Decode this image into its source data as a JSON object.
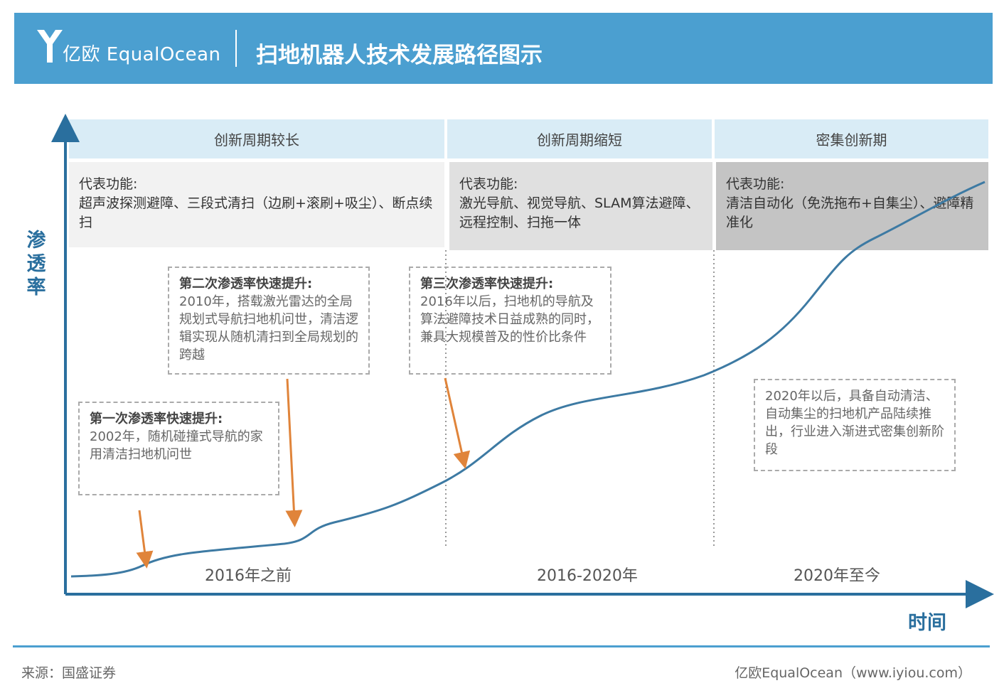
{
  "header": {
    "logo_text": "亿欧 EqualOcean",
    "title": "扫地机器人技术发展路径图示"
  },
  "axes": {
    "y_label": "渗透率",
    "x_label": "时间"
  },
  "stages": [
    {
      "head": "创新周期较长",
      "feature_title": "代表功能:",
      "features": "超声波探测避障、三段式清扫（边刷+滚刷+吸尘）、断点续扫",
      "period": "2016年之前"
    },
    {
      "head": "创新周期缩短",
      "feature_title": "代表功能:",
      "features": "激光导航、视觉导航、SLAM算法避障、远程控制、扫拖一体",
      "period": "2016-2020年"
    },
    {
      "head": "密集创新期",
      "feature_title": "代表功能:",
      "features": "清洁自动化（免洗拖布+自集尘）、避障精准化",
      "period": "2020年至今"
    }
  ],
  "notes": [
    {
      "title": "第一次渗透率快速提升:",
      "body": "2002年，随机碰撞式导航的家用清洁扫地机问世"
    },
    {
      "title": "第二次渗透率快速提升:",
      "body": "2010年，搭载激光雷达的全局规划式导航扫地机问世，清洁逻辑实现从随机清扫到全局规划的跨越"
    },
    {
      "title": "第三次渗透率快速提升:",
      "body": "2016年以后，扫地机的导航及算法避障技术日益成熟的同时，兼具大规模普及的性价比条件"
    },
    {
      "title": "",
      "body": "2020年以后，具备自动清洁、自动集尘的扫地机产品陆续推出，行业进入渐进式密集创新阶段"
    }
  ],
  "footer": {
    "source": "来源：国盛证券",
    "credit": "亿欧EqualOcean（www.iyiou.com）"
  },
  "colors": {
    "header": "#4b9fd0",
    "curve": "#3d7aa3",
    "axis": "#2a6f9e",
    "arrow": "#e0843a",
    "head_fill": "#d9ecf6",
    "feature_fills": [
      "#f2f2f2",
      "#e0e0e0",
      "#c4c4c4"
    ]
  }
}
